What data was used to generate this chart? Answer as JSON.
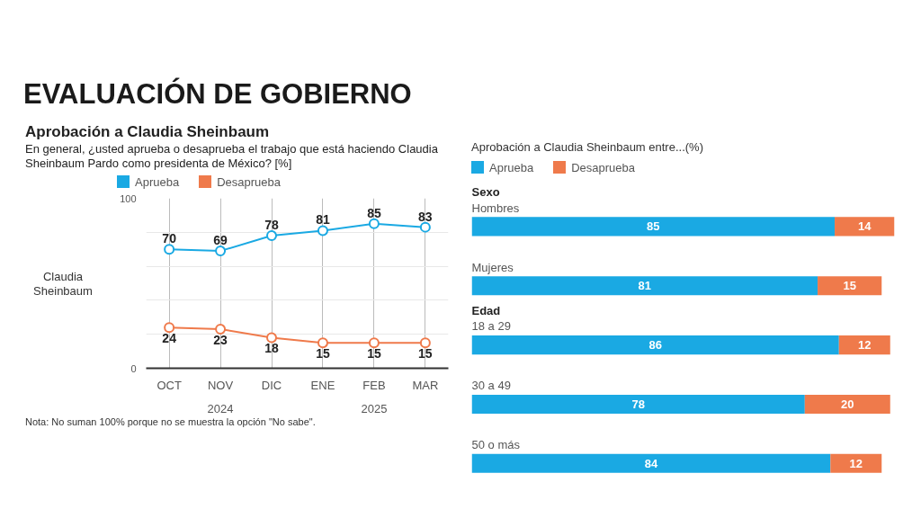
{
  "chart_data": [
    {
      "type": "line",
      "title": "Aprobación a Claudia Sheinbaum",
      "subtitle": "En general, ¿usted aprueba o desaprueba el trabajo que está haciendo Claudia Sheinbaum Pardo como presidenta de México?  [%]",
      "categories": [
        "OCT",
        "NOV",
        "DIC",
        "ENE",
        "FEB",
        "MAR"
      ],
      "series": [
        {
          "name": "Aprueba",
          "color": "#1aa9e3",
          "values": [
            70,
            69,
            78,
            81,
            85,
            83
          ]
        },
        {
          "name": "Desaprueba",
          "color": "#ef7a4b",
          "values": [
            24,
            23,
            18,
            15,
            15,
            15
          ]
        }
      ],
      "ylim": [
        0,
        100
      ],
      "yticks": [
        0,
        {
          "value": 20,
          "label": null
        },
        {
          "value": 40,
          "label": null
        },
        {
          "value": 60,
          "label": null
        },
        {
          "value": 80,
          "label": null
        },
        100
      ],
      "grid": true,
      "marker": "circle",
      "data_labels": true,
      "legend": "top left",
      "annotations": [
        "EVALUACIÓN DE GOBIERNO",
        "Claudia Sheinbaum",
        "2024",
        "2025",
        "Nota: No suman 100% porque no se muestra la opción \"No sabe\"."
      ]
    },
    {
      "type": "bar",
      "orientation": "horizontal",
      "stacked": true,
      "title": "Aprobación a Claudia Sheinbaum entre...(%)",
      "categories": [
        "Hombres",
        "Mujeres",
        "18 a 29",
        "30 a 49",
        "50 o más"
      ],
      "series": [
        {
          "name": "Aprueba",
          "color": "#1aa9e3",
          "values": [
            85,
            81,
            86,
            78,
            84
          ]
        },
        {
          "name": "Desaprueba",
          "color": "#ef7a4b",
          "values": [
            14,
            15,
            12,
            20,
            12
          ]
        }
      ],
      "tick_labels": false,
      "data_labels": true,
      "legend": "top left",
      "annotations": [
        "Sexo",
        "Edad"
      ]
    }
  ]
}
